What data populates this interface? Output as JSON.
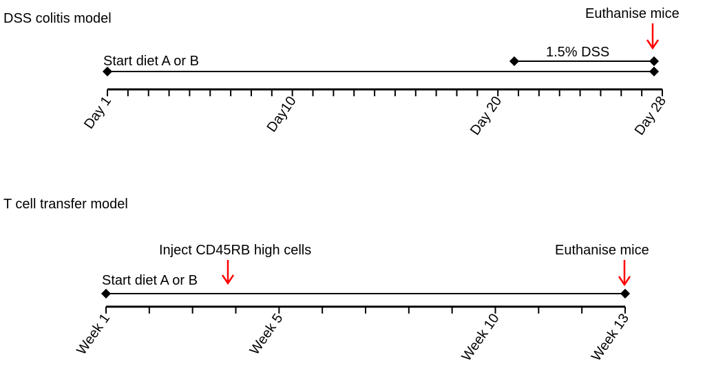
{
  "dss": {
    "title": "DSS colitis model",
    "start_label": "Start diet A or B",
    "dss_label": "1.5% DSS",
    "euthanise_label": "Euthanise mice",
    "axis": {
      "start": 1,
      "end": 28,
      "dss_start": 21,
      "euthanise_at": 28,
      "tick_labels": [
        {
          "value": 1,
          "text": "Day 1"
        },
        {
          "value": 10,
          "text": "Day10"
        },
        {
          "value": 20,
          "text": "Day 20"
        },
        {
          "value": 28,
          "text": "Day 28"
        }
      ]
    }
  },
  "tcell": {
    "title": "T cell transfer model",
    "start_label": "Start diet A or B",
    "inject_label": "Inject CD45RB high cells",
    "euthanise_label": "Euthanise mice",
    "axis": {
      "start": 1,
      "end": 13,
      "inject_at": 4,
      "euthanise_at": 13,
      "tick_labels": [
        {
          "value": 1,
          "text": "Week 1"
        },
        {
          "value": 5,
          "text": "Week 5"
        },
        {
          "value": 10,
          "text": "Week 10"
        },
        {
          "value": 13,
          "text": "Week 13"
        }
      ]
    }
  },
  "colors": {
    "line": "#000000",
    "arrow": "#ff0000"
  }
}
